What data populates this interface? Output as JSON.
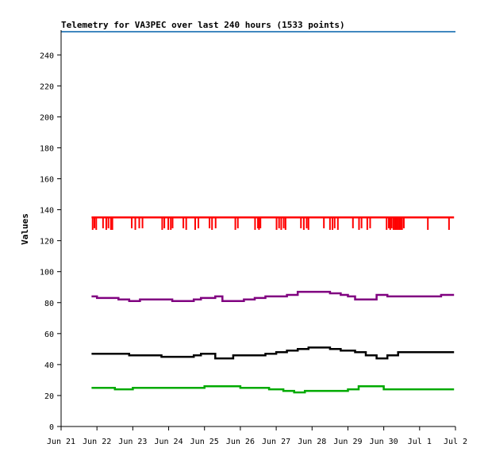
{
  "chart_data": {
    "type": "line",
    "title": "Telemetry for VA3PEC over last 240 hours (1533 points)",
    "ylabel": "Values",
    "xlabel": "",
    "ylim": [
      0,
      256
    ],
    "xlim": [
      0,
      11
    ],
    "grid": false,
    "legend": "none",
    "y_ticks": [
      0,
      20,
      40,
      60,
      80,
      100,
      120,
      140,
      160,
      180,
      200,
      220,
      240
    ],
    "x_ticks": [
      {
        "label": "Jun 21",
        "x": 0
      },
      {
        "label": "Jun 22",
        "x": 1
      },
      {
        "label": "Jun 23",
        "x": 2
      },
      {
        "label": "Jun 24",
        "x": 3
      },
      {
        "label": "Jun 25",
        "x": 4
      },
      {
        "label": "Jun 26",
        "x": 5
      },
      {
        "label": "Jun 27",
        "x": 6
      },
      {
        "label": "Jun 28",
        "x": 7
      },
      {
        "label": "Jun 29",
        "x": 8
      },
      {
        "label": "Jun 30",
        "x": 9
      },
      {
        "label": "Jul 1",
        "x": 10
      },
      {
        "label": "Jul 2",
        "x": 11
      }
    ],
    "series": [
      {
        "color": "#ff0000",
        "x": [
          0.85,
          10.96
        ],
        "values": [
          135,
          135
        ],
        "dips": [
          [
            0.88,
            127
          ],
          [
            0.93,
            128
          ],
          [
            0.98,
            127
          ],
          [
            1.17,
            128
          ],
          [
            1.26,
            127
          ],
          [
            1.32,
            128
          ],
          [
            1.39,
            127
          ],
          [
            1.43,
            127
          ],
          [
            1.97,
            128
          ],
          [
            2.07,
            127
          ],
          [
            2.18,
            128
          ],
          [
            2.27,
            128
          ],
          [
            2.82,
            127
          ],
          [
            2.88,
            128
          ],
          [
            2.99,
            127
          ],
          [
            3.06,
            127
          ],
          [
            3.11,
            128
          ],
          [
            3.41,
            128
          ],
          [
            3.49,
            127
          ],
          [
            3.74,
            127
          ],
          [
            3.83,
            128
          ],
          [
            4.14,
            128
          ],
          [
            4.21,
            127
          ],
          [
            4.31,
            128
          ],
          [
            4.86,
            127
          ],
          [
            4.93,
            128
          ],
          [
            5.41,
            127
          ],
          [
            5.49,
            128
          ],
          [
            5.52,
            127
          ],
          [
            5.56,
            128
          ],
          [
            6.01,
            127
          ],
          [
            6.08,
            128
          ],
          [
            6.14,
            127
          ],
          [
            6.21,
            128
          ],
          [
            6.26,
            127
          ],
          [
            6.69,
            128
          ],
          [
            6.77,
            127
          ],
          [
            6.85,
            128
          ],
          [
            6.9,
            127
          ],
          [
            7.33,
            128
          ],
          [
            7.5,
            127
          ],
          [
            7.57,
            127
          ],
          [
            7.63,
            128
          ],
          [
            7.72,
            127
          ],
          [
            8.14,
            128
          ],
          [
            8.31,
            127
          ],
          [
            8.38,
            128
          ],
          [
            8.54,
            127
          ],
          [
            8.62,
            128
          ],
          [
            9.08,
            127
          ],
          [
            9.14,
            128
          ],
          [
            9.18,
            127
          ],
          [
            9.22,
            128
          ],
          [
            9.27,
            127
          ],
          [
            9.31,
            127
          ],
          [
            9.35,
            127
          ],
          [
            9.39,
            127
          ],
          [
            9.43,
            127
          ],
          [
            9.47,
            127
          ],
          [
            9.51,
            127
          ],
          [
            9.56,
            128
          ],
          [
            10.23,
            127
          ],
          [
            10.82,
            127
          ]
        ]
      },
      {
        "color": "#800080",
        "x": [
          0.85,
          1.0,
          1.3,
          1.6,
          1.9,
          2.2,
          2.5,
          2.8,
          3.1,
          3.4,
          3.7,
          3.9,
          4.3,
          4.5,
          4.8,
          5.1,
          5.4,
          5.7,
          6.0,
          6.3,
          6.6,
          6.9,
          7.2,
          7.5,
          7.8,
          8.0,
          8.2,
          8.5,
          8.8,
          9.1,
          9.4,
          9.7,
          10.0,
          10.3,
          10.6,
          10.96
        ],
        "values": [
          84,
          83,
          83,
          82,
          81,
          82,
          82,
          82,
          81,
          81,
          82,
          83,
          84,
          81,
          81,
          82,
          83,
          84,
          84,
          85,
          87,
          87,
          87,
          86,
          85,
          84,
          82,
          82,
          85,
          84,
          84,
          84,
          84,
          84,
          85,
          85
        ]
      },
      {
        "color": "#000000",
        "x": [
          0.85,
          1.0,
          1.3,
          1.6,
          1.9,
          2.2,
          2.5,
          2.8,
          3.1,
          3.4,
          3.7,
          3.9,
          4.3,
          4.5,
          4.8,
          5.1,
          5.4,
          5.7,
          6.0,
          6.3,
          6.6,
          6.9,
          7.2,
          7.5,
          7.8,
          8.0,
          8.2,
          8.5,
          8.8,
          9.1,
          9.4,
          9.7,
          10.0,
          10.3,
          10.6,
          10.96
        ],
        "values": [
          47,
          47,
          47,
          47,
          46,
          46,
          46,
          45,
          45,
          45,
          46,
          47,
          44,
          44,
          46,
          46,
          46,
          47,
          48,
          49,
          50,
          51,
          51,
          50,
          49,
          49,
          48,
          46,
          44,
          46,
          48,
          48,
          48,
          48,
          48,
          48
        ]
      },
      {
        "color": "#00aa00",
        "x": [
          0.85,
          1.0,
          1.5,
          2.0,
          2.5,
          3.0,
          3.5,
          4.0,
          4.2,
          4.5,
          5.0,
          5.5,
          5.8,
          6.2,
          6.5,
          6.8,
          7.2,
          7.6,
          7.8,
          8.0,
          8.3,
          8.6,
          9.0,
          9.4,
          9.8,
          10.2,
          10.6,
          10.96
        ],
        "values": [
          25,
          25,
          24,
          25,
          25,
          25,
          25,
          26,
          26,
          26,
          25,
          25,
          24,
          23,
          22,
          23,
          23,
          23,
          23,
          24,
          26,
          26,
          24,
          24,
          24,
          24,
          24,
          24
        ]
      },
      {
        "color": "#0060aa",
        "x": [
          0.0,
          11.0
        ],
        "values": [
          255,
          255
        ]
      }
    ]
  }
}
